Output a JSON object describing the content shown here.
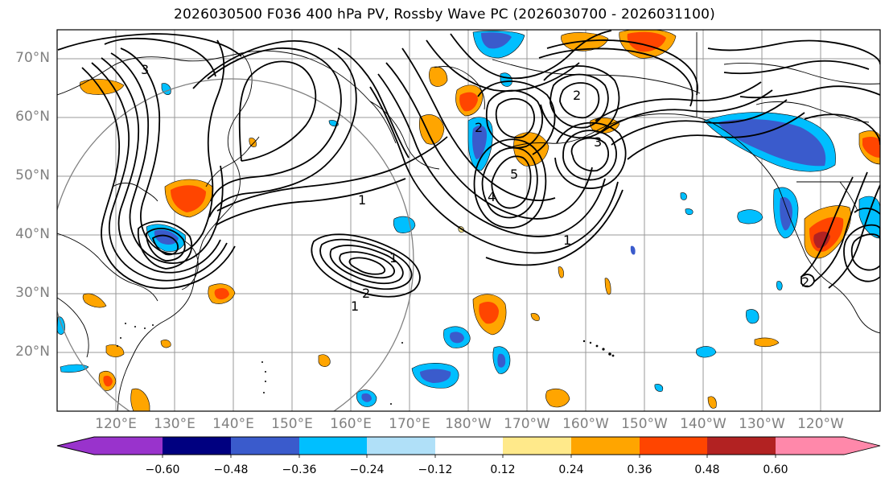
{
  "title": "2026030500 F036 400 hPa PV, Rossby Wave PC (2026030700 - 2026031100)",
  "map": {
    "lat_labels": [
      "70°N",
      "60°N",
      "50°N",
      "40°N",
      "30°N",
      "20°N"
    ],
    "lon_labels": [
      "120°E",
      "130°E",
      "140°E",
      "150°E",
      "160°E",
      "170°E",
      "180°W",
      "170°W",
      "160°W",
      "150°W",
      "140°W",
      "130°W",
      "120°W"
    ],
    "contour_labels": [
      "3",
      "1",
      "1",
      "2",
      "5",
      "4",
      "3",
      "2",
      "1",
      "1",
      "2",
      "2"
    ]
  },
  "colorbar": {
    "tick_labels": [
      "−0.60",
      "−0.48",
      "−0.36",
      "−0.24",
      "−0.12",
      "0.12",
      "0.24",
      "0.36",
      "0.48",
      "0.60"
    ],
    "colors": [
      "#9933cc",
      "#000080",
      "#3a5bcc",
      "#00bfff",
      "#b0e0f8",
      "#ffffff",
      "#ffe98a",
      "#ffa500",
      "#ff4500",
      "#b22222",
      "#ff88aa"
    ]
  },
  "colors": {
    "neg_strong": "#3a5bcc",
    "neg_mid": "#00bfff",
    "neg_weak": "#b0e0f8",
    "pos_weak": "#ffe98a",
    "pos_mid": "#ffa500",
    "pos_strong": "#ff4500",
    "grid": "#999999",
    "contour": "#000000",
    "label_gray": "#808080"
  }
}
